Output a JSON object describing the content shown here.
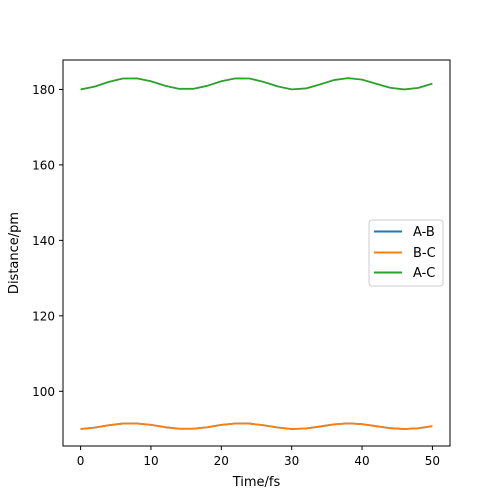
{
  "chart_data": {
    "type": "line",
    "xlabel": "Time/fs",
    "ylabel": "Distance/pm",
    "xlim": [
      -2.5,
      52.5
    ],
    "ylim": [
      85.5,
      187.8
    ],
    "xticks": [
      0,
      10,
      20,
      30,
      40,
      50
    ],
    "yticks": [
      100,
      120,
      140,
      160,
      180
    ],
    "grid": false,
    "legend_position": "center-right",
    "series": [
      {
        "name": "A-B",
        "color": "#1f77b4",
        "x": [
          0,
          2,
          4,
          6,
          8,
          10,
          12,
          14,
          16,
          18,
          20,
          22,
          24,
          26,
          28,
          30,
          32,
          34,
          36,
          38,
          40,
          42,
          44,
          46,
          48,
          50
        ],
        "y": [
          90.0,
          90.37,
          91.0,
          91.45,
          91.46,
          91.09,
          90.49,
          90.08,
          90.08,
          90.48,
          91.09,
          91.47,
          91.45,
          91.0,
          90.4,
          90.01,
          90.13,
          90.65,
          91.24,
          91.5,
          91.3,
          90.75,
          90.22,
          90.0,
          90.21,
          90.77
        ]
      },
      {
        "name": "B-C",
        "color": "#ff7f0e",
        "x": [
          0,
          2,
          4,
          6,
          8,
          10,
          12,
          14,
          16,
          18,
          20,
          22,
          24,
          26,
          28,
          30,
          32,
          34,
          36,
          38,
          40,
          42,
          44,
          46,
          48,
          50
        ],
        "y": [
          90.0,
          90.37,
          91.0,
          91.45,
          91.46,
          91.09,
          90.49,
          90.08,
          90.08,
          90.48,
          91.09,
          91.47,
          91.45,
          91.0,
          90.4,
          90.01,
          90.13,
          90.65,
          91.24,
          91.5,
          91.3,
          90.75,
          90.22,
          90.0,
          90.21,
          90.77
        ]
      },
      {
        "name": "A-C",
        "color": "#2ca02c",
        "x": [
          0,
          2,
          4,
          6,
          8,
          10,
          12,
          14,
          16,
          18,
          20,
          22,
          24,
          26,
          28,
          30,
          32,
          34,
          36,
          38,
          40,
          42,
          44,
          46,
          48,
          50
        ],
        "y": [
          180.0,
          180.74,
          182.0,
          182.9,
          182.92,
          182.18,
          180.98,
          180.16,
          180.16,
          180.96,
          182.18,
          182.94,
          182.9,
          182.0,
          180.8,
          180.02,
          180.26,
          181.3,
          182.48,
          183.0,
          182.6,
          181.5,
          180.44,
          180.0,
          180.42,
          181.54
        ]
      }
    ]
  }
}
